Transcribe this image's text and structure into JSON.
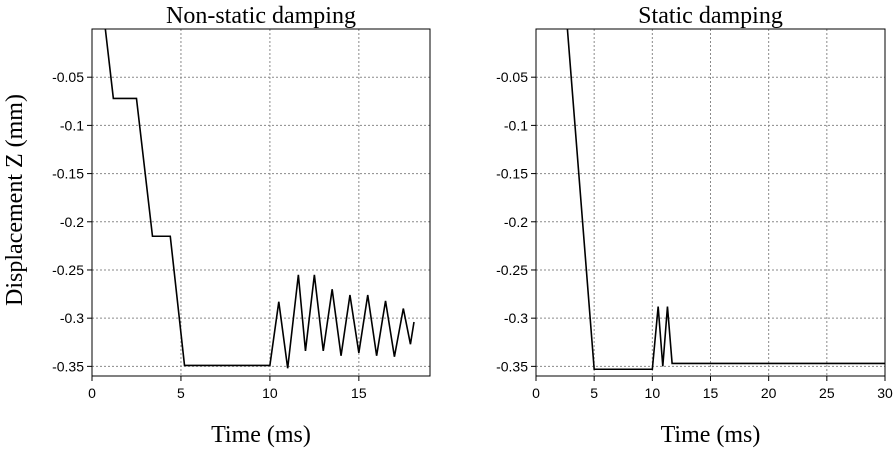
{
  "figure": {
    "ylabel": "Displacement Z (mm)"
  },
  "chart_data": [
    {
      "type": "line",
      "title": "Non-static damping",
      "xlabel": "Time (ms)",
      "ylabel": "Displacement Z (mm)",
      "xlim": [
        0,
        19
      ],
      "ylim": [
        -0.36,
        0.0
      ],
      "xticks": [
        0,
        5,
        10,
        15
      ],
      "yticks": [
        -0.05,
        -0.1,
        -0.15,
        -0.2,
        -0.25,
        -0.3,
        -0.35
      ],
      "xtick_labels": [
        "0",
        "5",
        "10",
        "15"
      ],
      "ytick_labels": [
        "-0.05",
        "-0.1",
        "-0.15",
        "-0.2",
        "-0.25",
        "-0.3",
        "-0.35"
      ],
      "grid": true,
      "series": [
        {
          "x": [
            0.75,
            1.2,
            2.5,
            3.4,
            4.4,
            5.2,
            10.0,
            10.5,
            11.0,
            11.6,
            12.0,
            12.5,
            13.0,
            13.5,
            14.0,
            14.5,
            15.0,
            15.5,
            16.0,
            16.5,
            17.0,
            17.5,
            17.9,
            18.1
          ],
          "y": [
            0.0,
            -0.072,
            -0.072,
            -0.215,
            -0.215,
            -0.349,
            -0.349,
            -0.283,
            -0.352,
            -0.255,
            -0.334,
            -0.255,
            -0.334,
            -0.27,
            -0.339,
            -0.276,
            -0.336,
            -0.276,
            -0.339,
            -0.282,
            -0.34,
            -0.29,
            -0.327,
            -0.304
          ]
        }
      ]
    },
    {
      "type": "line",
      "title": "Static damping",
      "xlabel": "Time (ms)",
      "xlim": [
        0,
        30
      ],
      "ylim": [
        -0.36,
        0.0
      ],
      "xticks": [
        0,
        5,
        10,
        15,
        20,
        25,
        30
      ],
      "yticks": [
        -0.05,
        -0.1,
        -0.15,
        -0.2,
        -0.25,
        -0.3,
        -0.35
      ],
      "xtick_labels": [
        "0",
        "5",
        "10",
        "15",
        "20",
        "25",
        "30"
      ],
      "ytick_labels": [
        "-0.05",
        "-0.1",
        "-0.15",
        "-0.2",
        "-0.25",
        "-0.3",
        "-0.35"
      ],
      "grid": true,
      "series": [
        {
          "x": [
            2.7,
            5.0,
            10.0,
            10.5,
            10.9,
            11.3,
            11.7,
            30.0
          ],
          "y": [
            0.0,
            -0.353,
            -0.353,
            -0.288,
            -0.35,
            -0.288,
            -0.347,
            -0.347
          ]
        }
      ]
    }
  ]
}
